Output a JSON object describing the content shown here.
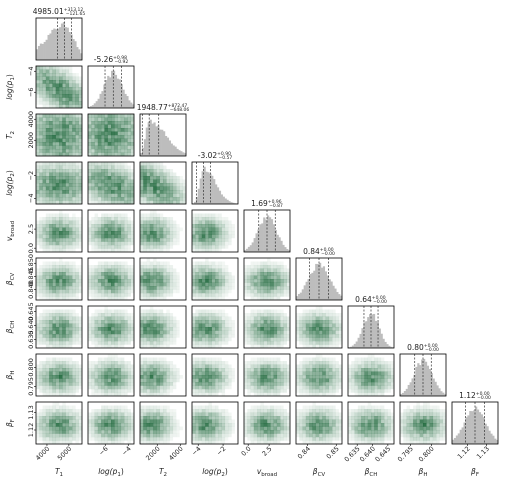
{
  "chart_data": {
    "type": "corner",
    "colors": {
      "hist": "#bdbdbd",
      "density": "#0a5a2a",
      "quantile": "#333333"
    },
    "params": [
      {
        "key": "T1",
        "xlabel": "T_1",
        "tex_main": "T",
        "tex_sub": "1",
        "ylabel_main": "T",
        "ylabel_sub": "1",
        "median": 4985.01,
        "plus": 313.12,
        "minus": 121.65,
        "title": "4985.01",
        "range": [
          3500,
          5600
        ],
        "ticks": [
          4000,
          5000
        ],
        "tick_labels": [
          "4000",
          "5000"
        ]
      },
      {
        "key": "logp1",
        "xlabel": "log(p_1)",
        "tex_main": "log(p",
        "tex_sub": "1",
        "tex_tail": ")",
        "median": -5.26,
        "plus": 0.98,
        "minus": 0.92,
        "title": "-5.26",
        "range": [
          -7.5,
          -3.5
        ],
        "ticks": [
          -6,
          -4
        ],
        "tick_labels": [
          "−6",
          "−4"
        ]
      },
      {
        "key": "T2",
        "xlabel": "T_2",
        "tex_main": "T",
        "tex_sub": "2",
        "median": 1948.77,
        "plus": 872.47,
        "minus": 648.06,
        "title": "1948.77",
        "range": [
          500,
          4500
        ],
        "ticks": [
          2000,
          4000
        ],
        "tick_labels": [
          "2000",
          "4000"
        ]
      },
      {
        "key": "logp2",
        "xlabel": "log(p_2)",
        "tex_main": "log(p",
        "tex_sub": "2",
        "tex_tail": ")",
        "median": -3.02,
        "plus": 0.9,
        "minus": 0.57,
        "title": "-3.02",
        "range": [
          -4.5,
          -0.8
        ],
        "ticks": [
          -4,
          -2
        ],
        "tick_labels": [
          "−4",
          "−2"
        ]
      },
      {
        "key": "vbroad",
        "xlabel": "v_broad",
        "tex_main": "v",
        "tex_sub": "broad",
        "median": 1.69,
        "plus": 0.96,
        "minus": 0.87,
        "title": "1.69",
        "range": [
          -0.5,
          5.0
        ],
        "ticks": [
          0.0,
          2.5
        ],
        "tick_labels": [
          "0.0",
          "2.5"
        ]
      },
      {
        "key": "betaCV",
        "xlabel": "β_CV",
        "tex_main": "β",
        "tex_sub": "CV",
        "median": 0.84,
        "plus": 0.0,
        "minus": 0.0,
        "title": "0.84",
        "range": [
          0.836,
          0.852
        ],
        "ticks": [
          0.84,
          0.85
        ],
        "tick_labels": [
          "0.84",
          "0.85"
        ],
        "ytick_labels": [
          "0.840",
          "0.845",
          "0.850"
        ],
        "yticks": [
          0.84,
          0.845,
          0.85
        ]
      },
      {
        "key": "betaCH",
        "xlabel": "β_CH",
        "tex_main": "β",
        "tex_sub": "CH",
        "median": 0.64,
        "plus": 0.0,
        "minus": 0.0,
        "title": "0.64",
        "range": [
          0.632,
          0.647
        ],
        "ticks": [
          0.635,
          0.64,
          0.645
        ],
        "tick_labels": [
          "0.635",
          "0.640",
          "0.645"
        ]
      },
      {
        "key": "betaH",
        "xlabel": "β_H",
        "tex_main": "β",
        "tex_sub": "H",
        "median": 0.8,
        "plus": 0.0,
        "minus": 0.0,
        "title": "0.80",
        "range": [
          0.7925,
          0.8035
        ],
        "ticks": [
          0.795,
          0.8
        ],
        "tick_labels": [
          "0.795",
          "0.800"
        ]
      },
      {
        "key": "betaF",
        "xlabel": "β_F",
        "tex_main": "β",
        "tex_sub": "F",
        "median": 1.12,
        "plus": 0.0,
        "minus": 0.0,
        "title": "1.12",
        "range": [
          1.112,
          1.136
        ],
        "ticks": [
          1.12,
          1.13
        ],
        "tick_labels": [
          "1.12",
          "1.13"
        ]
      }
    ]
  }
}
